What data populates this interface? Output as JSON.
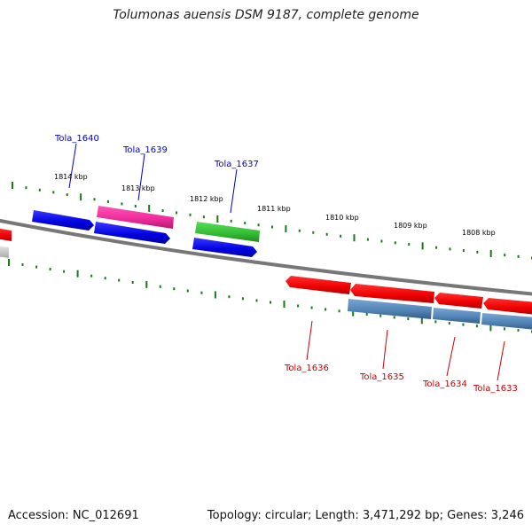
{
  "title": "Tolumonas auensis DSM 9187, complete genome",
  "footer": {
    "accession": "Accession: NC_012691",
    "summary": "Topology: circular; Length: 3,471,292 bp; Genes: 3,246"
  },
  "scale_ticks": [
    "1814 kbp",
    "1813 kbp",
    "1812 kbp",
    "1811 kbp",
    "1810 kbp",
    "1809 kbp",
    "1808 kbp"
  ],
  "genes_forward": [
    {
      "label": "Tola_1640",
      "color": "#0000cc"
    },
    {
      "label": "Tola_1639",
      "color": "#0000cc"
    },
    {
      "label": "Tola_1637",
      "color": "#0000cc"
    }
  ],
  "genes_reverse": [
    {
      "label": "Tola_1636",
      "color": "#cc0000"
    },
    {
      "label": "Tola_1635",
      "color": "#cc0000"
    },
    {
      "label": "Tola_1634",
      "color": "#cc0000"
    },
    {
      "label": "Tola_1633",
      "color": "#cc0000"
    }
  ],
  "colors": {
    "backbone": "#777777",
    "tick_dots": "#1a7a1a",
    "cds_forward": "#0000ee",
    "cds_reverse": "#ee0000",
    "pseudo_pink": "#ee2a9a",
    "rna_green": "#33bb33",
    "steel_blue": "#4f82b4",
    "label_forward": "#0000cc",
    "label_reverse": "#cc0000"
  }
}
